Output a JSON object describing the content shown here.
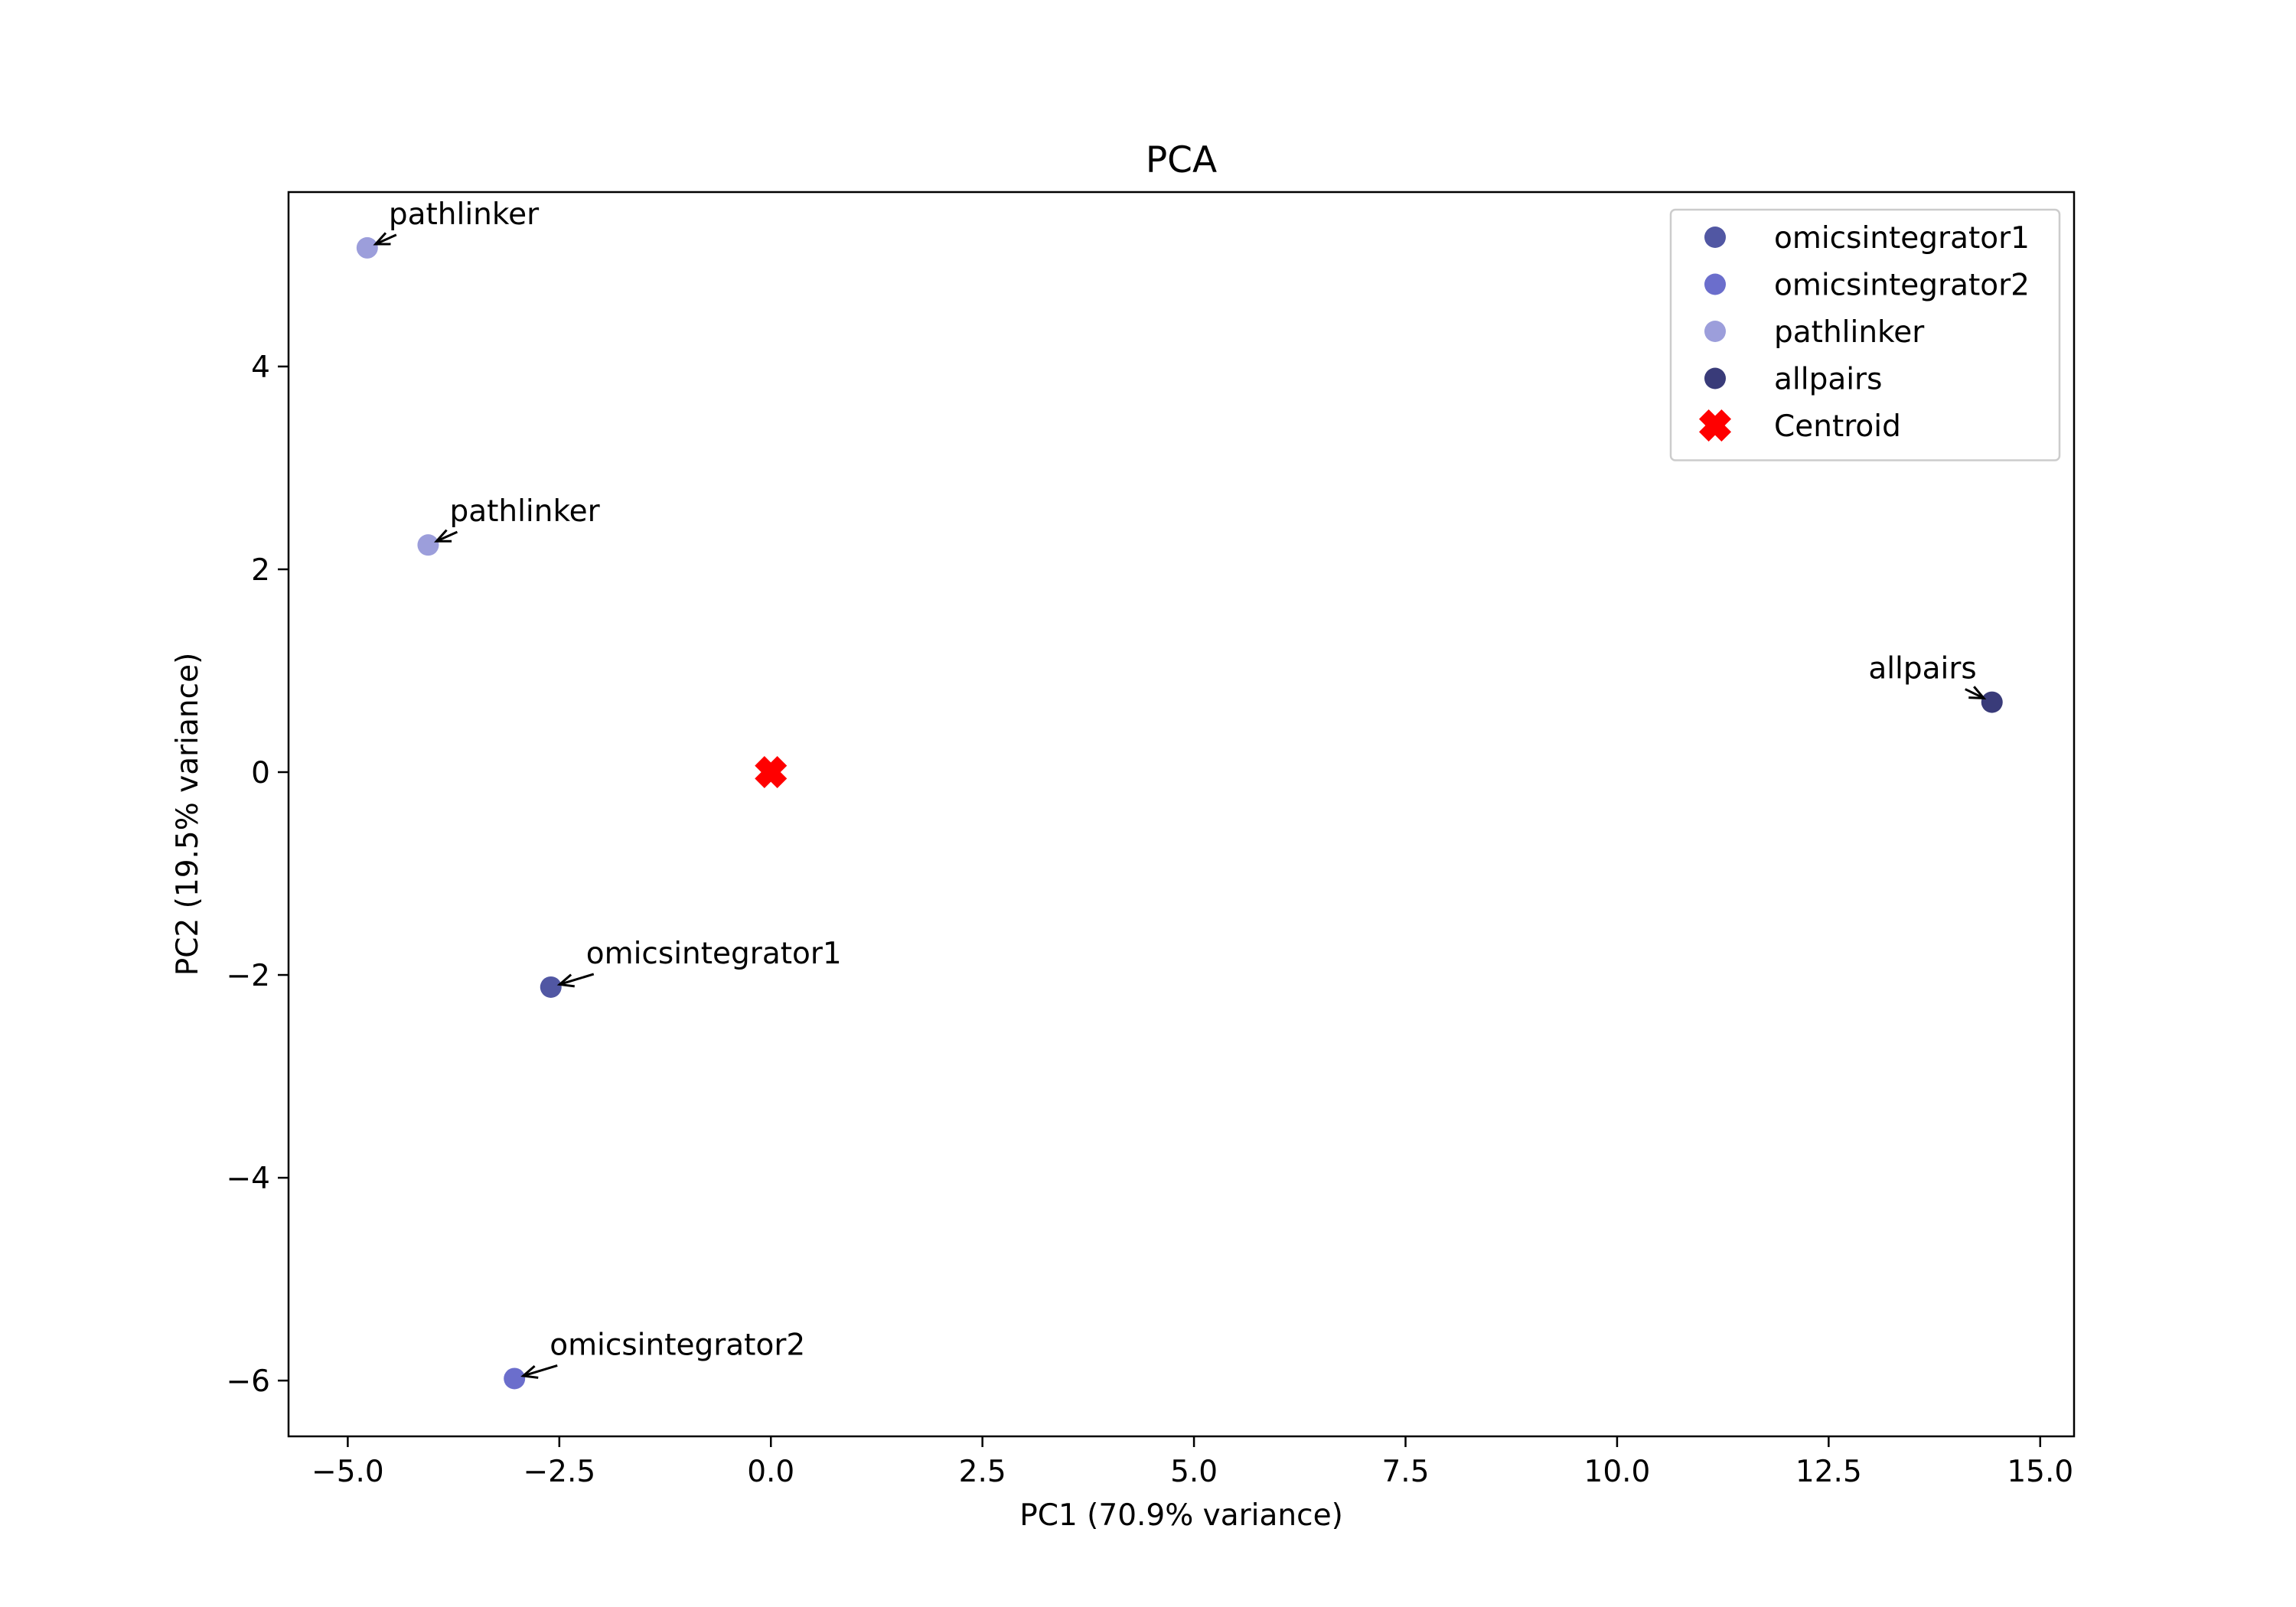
{
  "chart_data": {
    "type": "scatter",
    "title": "PCA",
    "xlabel": "PC1 (70.9% variance)",
    "ylabel": "PC2 (19.5% variance)",
    "xlim": [
      -5.7,
      15.4
    ],
    "ylim": [
      -6.55,
      5.72
    ],
    "xticks": [
      -5.0,
      -2.5,
      0.0,
      2.5,
      5.0,
      7.5,
      10.0,
      12.5,
      15.0
    ],
    "xtick_labels": [
      "−5.0",
      "−2.5",
      "0.0",
      "2.5",
      "5.0",
      "7.5",
      "10.0",
      "12.5",
      "15.0"
    ],
    "yticks": [
      -6,
      -4,
      -2,
      0,
      2,
      4
    ],
    "ytick_labels": [
      "−6",
      "−4",
      "−2",
      "0",
      "2",
      "4"
    ],
    "grid": false,
    "legend_position": "top-right",
    "series": [
      {
        "name": "omicsintegrator1",
        "color": "#5157a3",
        "marker": "circle",
        "points": [
          {
            "x": -2.6,
            "y": -2.12,
            "label": "omicsintegrator1"
          }
        ]
      },
      {
        "name": "omicsintegrator2",
        "color": "#6b6ecc",
        "marker": "circle",
        "points": [
          {
            "x": -3.03,
            "y": -5.98,
            "label": "omicsintegrator2"
          }
        ]
      },
      {
        "name": "pathlinker",
        "color": "#9c9edb",
        "marker": "circle",
        "points": [
          {
            "x": -4.77,
            "y": 5.17,
            "label": "pathlinker"
          },
          {
            "x": -4.05,
            "y": 2.24,
            "label": "pathlinker"
          }
        ]
      },
      {
        "name": "allpairs",
        "color": "#393b79",
        "marker": "circle",
        "points": [
          {
            "x": 14.43,
            "y": 0.69,
            "label": "allpairs"
          }
        ]
      },
      {
        "name": "Centroid",
        "color": "#ff0000",
        "marker": "x",
        "points": [
          {
            "x": 0.0,
            "y": 0.0
          }
        ]
      }
    ]
  }
}
